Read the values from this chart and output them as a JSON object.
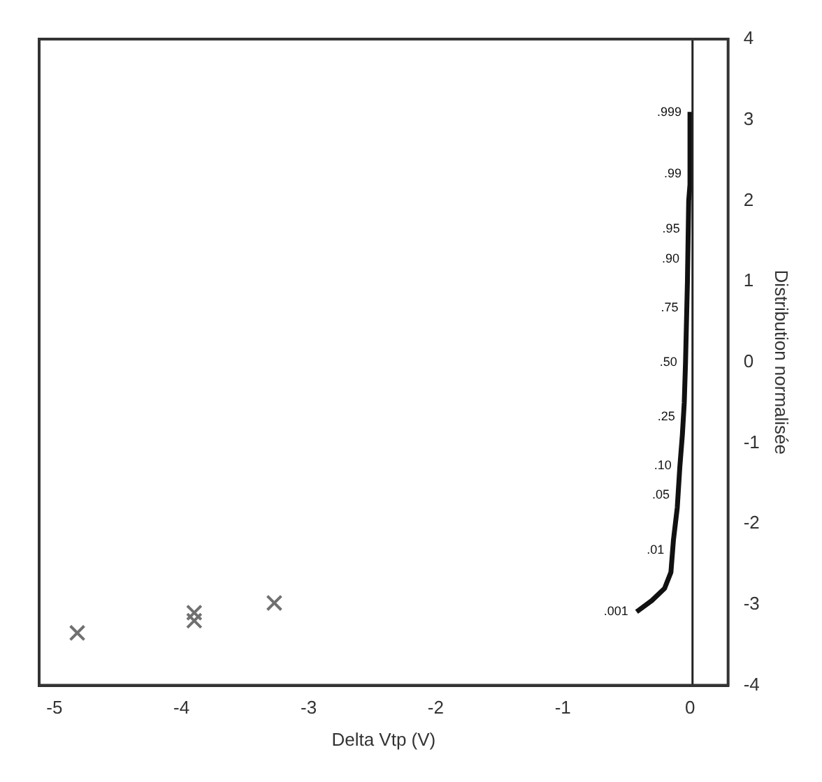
{
  "chart_data": {
    "type": "scatter",
    "xlabel": "Delta Vtp (V)",
    "ylabel": "Distribution normalisée",
    "xlim": [
      -5.12,
      0.3
    ],
    "xticks": [
      -5,
      -4,
      -3,
      -2,
      -1,
      0
    ],
    "ylim": [
      -4,
      4
    ],
    "yticks": [
      -4,
      -3,
      -2,
      -1,
      0,
      1,
      2,
      3,
      4
    ],
    "annotations": [
      {
        "text": ".001",
        "x": -0.42,
        "y": -3.09
      },
      {
        "text": ".01",
        "x": -0.137,
        "y": -2.33
      },
      {
        "text": ".05",
        "x": -0.094,
        "y": -1.645
      },
      {
        "text": ".10",
        "x": -0.079,
        "y": -1.28
      },
      {
        "text": ".25",
        "x": -0.0515,
        "y": -0.674
      },
      {
        "text": ".50",
        "x": -0.035,
        "y": 0
      },
      {
        "text": ".75",
        "x": -0.025,
        "y": 0.674
      },
      {
        "text": ".90",
        "x": -0.017,
        "y": 1.28
      },
      {
        "text": ".95",
        "x": -0.0136,
        "y": 1.645
      },
      {
        "text": ".99",
        "x": 0,
        "y": 2.33
      },
      {
        "text": ".999",
        "x": 0,
        "y": 3.09
      }
    ],
    "ref_lines": [
      {
        "axis": "x",
        "value": 0.02,
        "color": "#222222"
      }
    ],
    "grid": false,
    "legend": false,
    "series": [
      {
        "marker": "cross",
        "color": "#707070",
        "x": [
          -4.82,
          -3.9,
          -3.9,
          -3.27
        ],
        "values": [
          -3.35,
          -3.1,
          -3.2,
          -2.98
        ]
      },
      {
        "type": "line",
        "marker": "none",
        "color": "#111111",
        "x": [
          -0.42,
          -0.3,
          -0.2,
          -0.15,
          -0.13,
          -0.1,
          -0.08,
          -0.06,
          -0.045,
          -0.035,
          -0.02,
          -0.01,
          0.0,
          0.0
        ],
        "values": [
          -3.09,
          -2.95,
          -2.8,
          -2.6,
          -2.2,
          -1.8,
          -1.3,
          -0.9,
          -0.5,
          0,
          1.0,
          2.0,
          2.2,
          3.1
        ]
      }
    ]
  }
}
